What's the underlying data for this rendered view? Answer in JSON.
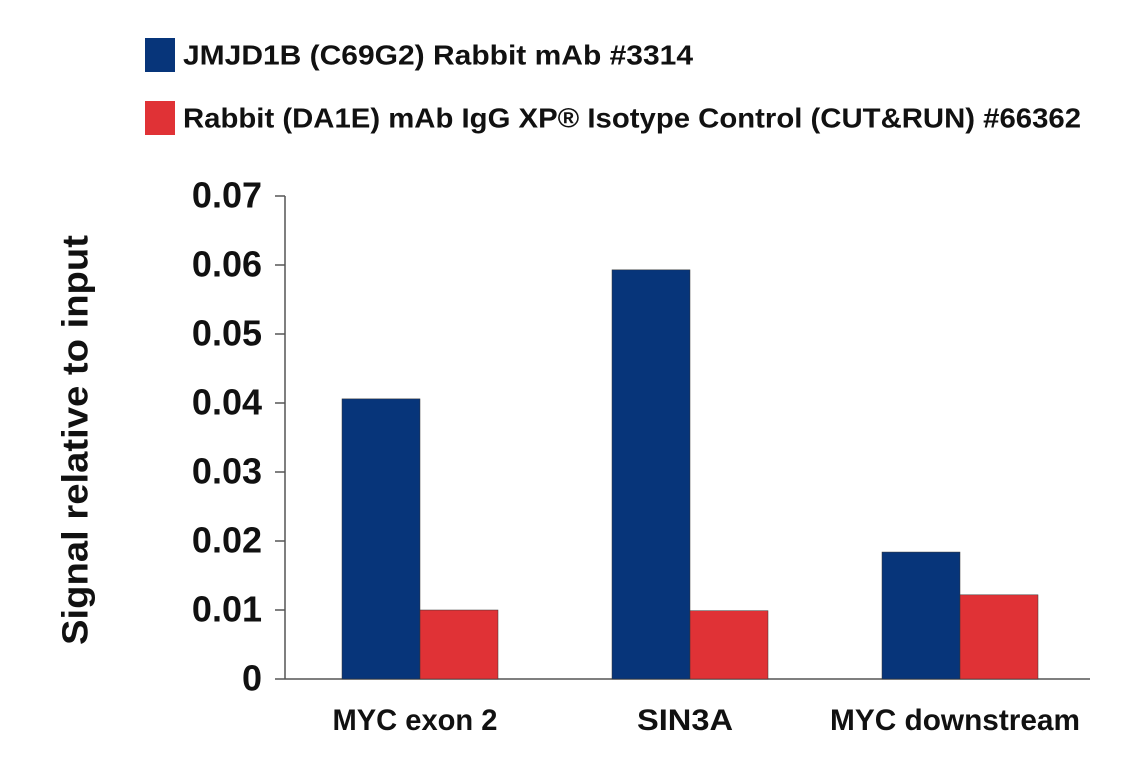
{
  "chart_data": {
    "type": "bar",
    "y_label": "Signal relative to input",
    "categories": [
      "MYC exon 2",
      "SIN3A",
      "MYC downstream"
    ],
    "series": [
      {
        "name": "JMJD1B (C69G2) Rabbit mAb #3314",
        "color": "#07357a",
        "values": [
          0.0406,
          0.0593,
          0.0184
        ]
      },
      {
        "name": "Rabbit (DA1E) mAb IgG XP® Isotype Control (CUT&RUN) #66362",
        "color": "#e03236",
        "values": [
          0.01,
          0.0099,
          0.0122
        ]
      }
    ],
    "ylim": [
      0,
      0.07
    ],
    "yticks": [
      0,
      0.01,
      0.02,
      0.03,
      0.04,
      0.05,
      0.06,
      0.07
    ],
    "grid": false
  }
}
